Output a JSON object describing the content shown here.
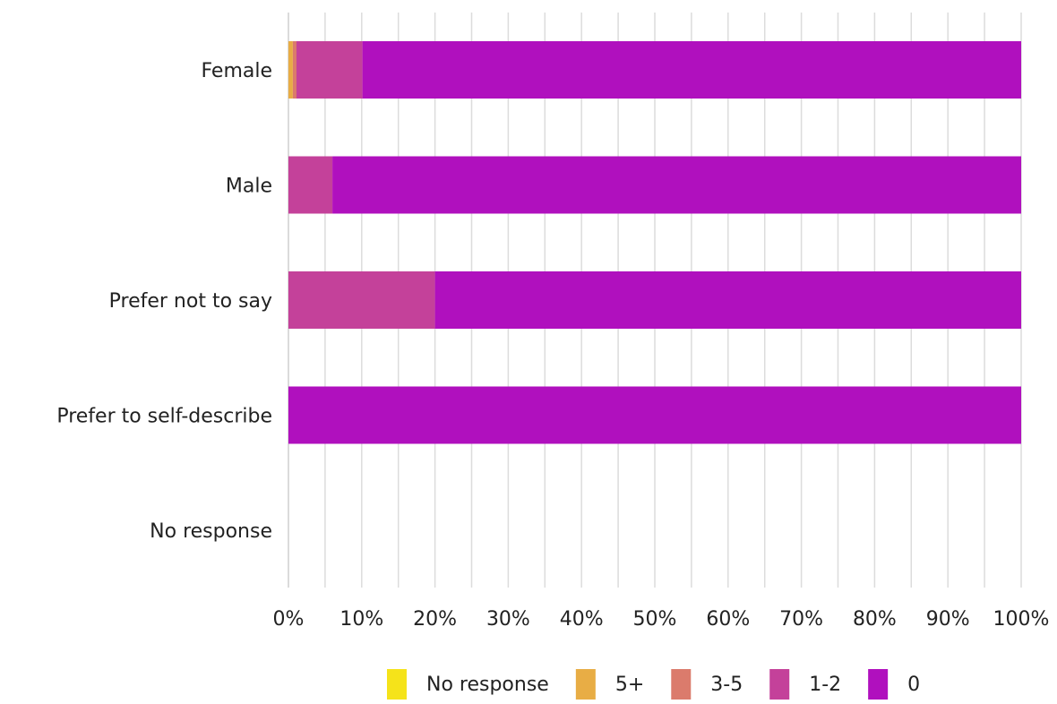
{
  "chart_data": {
    "type": "bar",
    "orientation": "horizontal",
    "stacked": true,
    "percent_scale": true,
    "categories": [
      "Female",
      "Male",
      "Prefer not to say",
      "Prefer to self-describe",
      "No response"
    ],
    "series": [
      {
        "name": "No response",
        "color": "#f5e31a",
        "values": [
          0,
          0,
          0,
          0,
          0
        ]
      },
      {
        "name": "5+",
        "color": "#e8ad45",
        "values": [
          0.6,
          0,
          0,
          0,
          0
        ]
      },
      {
        "name": "3-5",
        "color": "#db7b6c",
        "values": [
          0.5,
          0,
          0,
          0,
          0
        ]
      },
      {
        "name": "1-2",
        "color": "#c4419a",
        "values": [
          9.0,
          6.0,
          20.0,
          0,
          0
        ]
      },
      {
        "name": "0",
        "color": "#b010be",
        "values": [
          89.9,
          94.0,
          80.0,
          100.0,
          0
        ]
      }
    ],
    "x_ticks": [
      "0%",
      "10%",
      "20%",
      "30%",
      "40%",
      "50%",
      "60%",
      "70%",
      "80%",
      "90%",
      "100%"
    ],
    "xlim": [
      0,
      100
    ],
    "grid": true,
    "legend_position": "bottom",
    "title": "",
    "xlabel": "",
    "ylabel": ""
  }
}
